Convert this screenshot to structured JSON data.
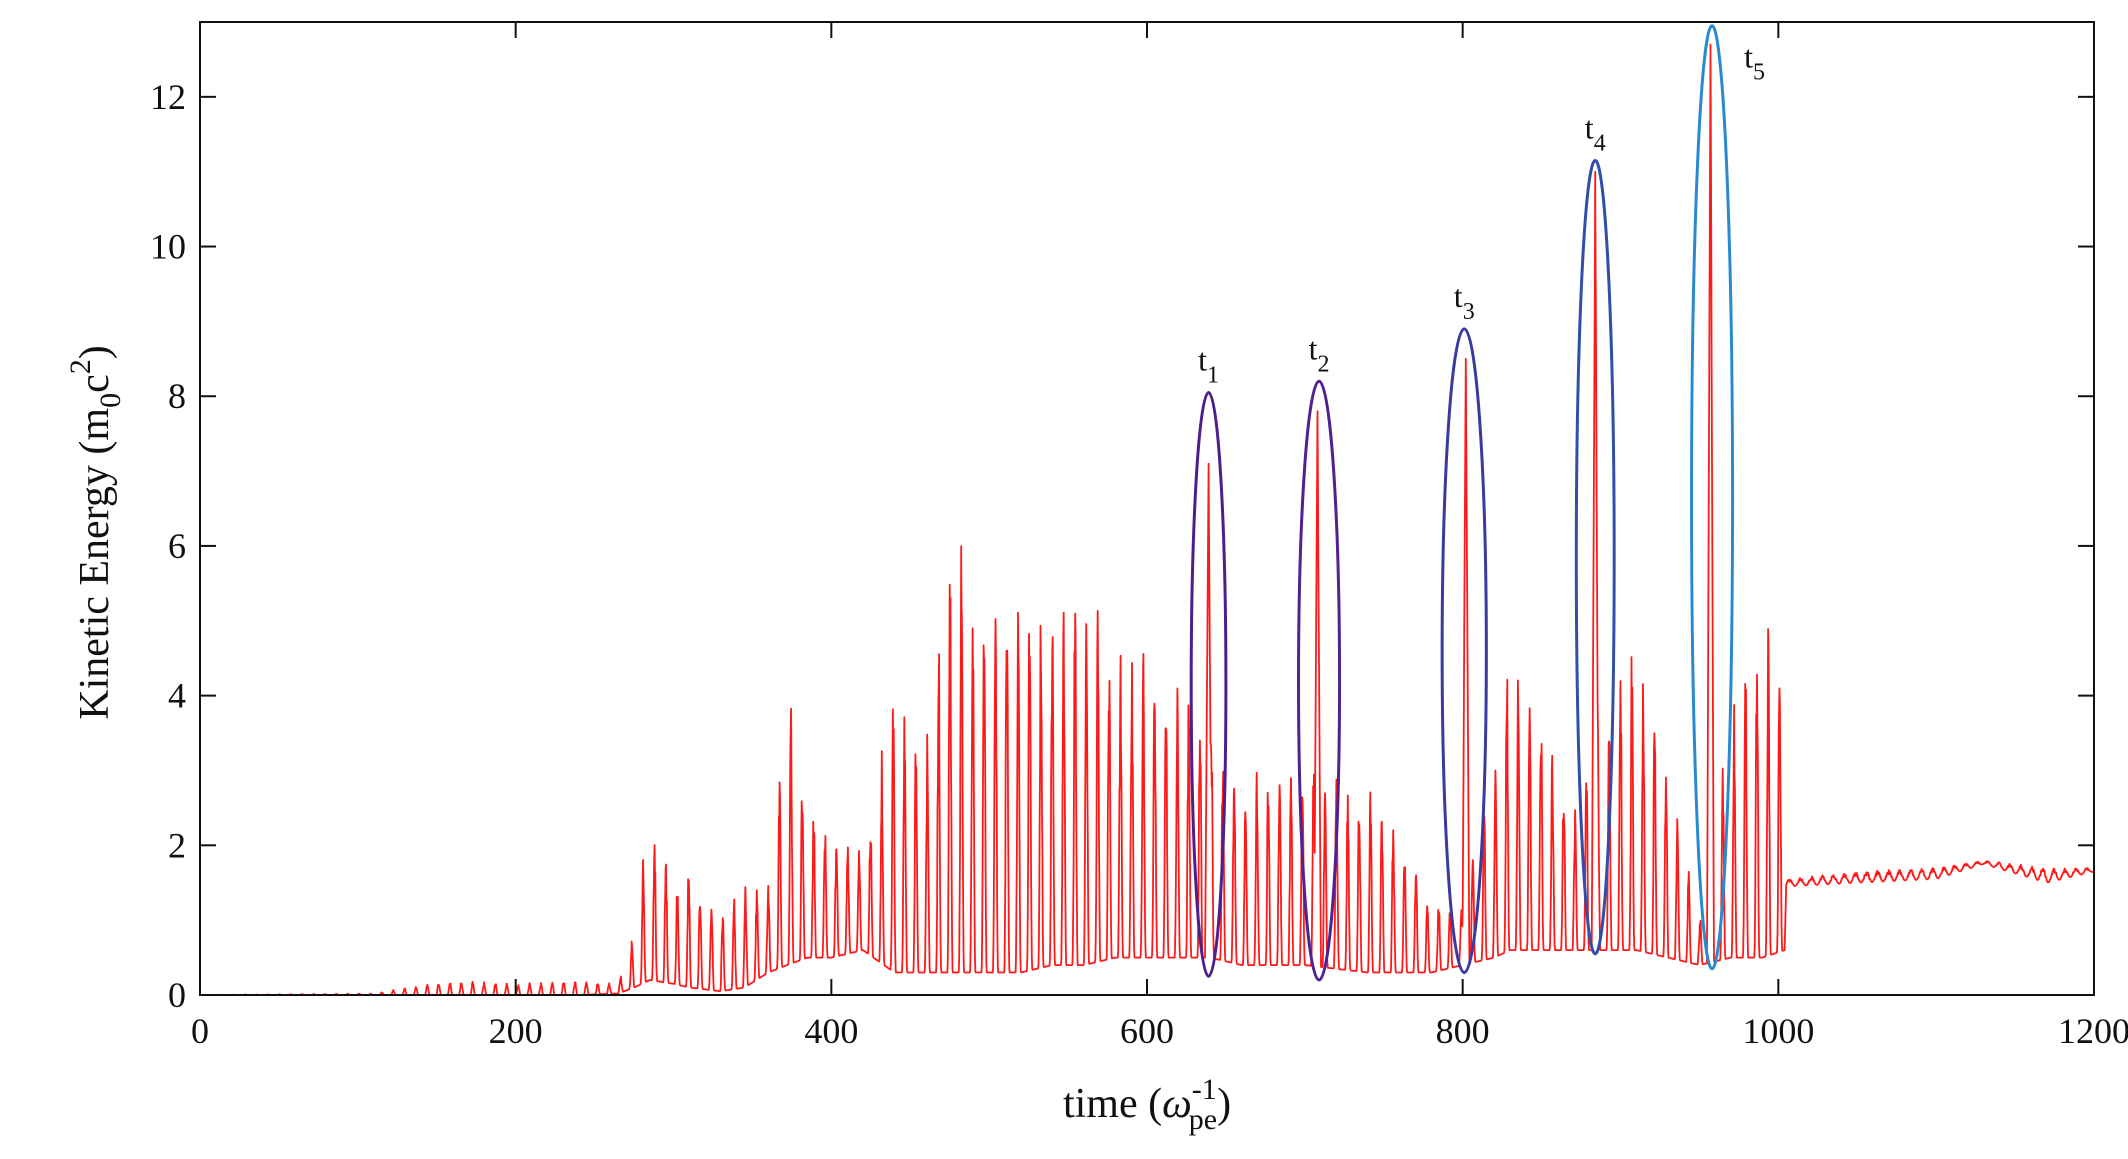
{
  "chart_data": {
    "type": "line",
    "xlabel": {
      "main": "time (",
      "symbol": "ω",
      "sup": "-1",
      "sub": "pe",
      "close": ")"
    },
    "ylabel": {
      "main": "Kinetic Energy  (m",
      "sub": "0",
      "mid": "c",
      "sup": "2",
      "close": ")"
    },
    "xlim": [
      0,
      1200
    ],
    "ylim": [
      0,
      13
    ],
    "xticks": [
      0,
      200,
      400,
      600,
      800,
      1000,
      1200
    ],
    "xtick_labels": [
      "0",
      "200",
      "400",
      "600",
      "800",
      "1000",
      "1200"
    ],
    "yticks": [
      0,
      2,
      4,
      6,
      8,
      10,
      12
    ],
    "ytick_labels": [
      "0",
      "2",
      "4",
      "6",
      "8",
      "10",
      "12"
    ],
    "grid": false,
    "series_color": "#ff1a1a",
    "envelope": [
      [
        0,
        0,
        0
      ],
      [
        110,
        0,
        0.02
      ],
      [
        130,
        0,
        0.1
      ],
      [
        160,
        0,
        0.2
      ],
      [
        200,
        0,
        0.15
      ],
      [
        240,
        0,
        0.2
      ],
      [
        265,
        0.02,
        0.15
      ],
      [
        275,
        0.1,
        0.9
      ],
      [
        285,
        0.2,
        2.5
      ],
      [
        300,
        0.15,
        1.5
      ],
      [
        310,
        0.1,
        1.8
      ],
      [
        330,
        0.05,
        1.2
      ],
      [
        345,
        0.1,
        1.5
      ],
      [
        360,
        0.3,
        1.5
      ],
      [
        372,
        0.4,
        4.2
      ],
      [
        385,
        0.5,
        2.8
      ],
      [
        400,
        0.5,
        2.2
      ],
      [
        420,
        0.6,
        2.0
      ],
      [
        440,
        0.3,
        4.2
      ],
      [
        460,
        0.3,
        3.5
      ],
      [
        478,
        0.3,
        6.5
      ],
      [
        500,
        0.3,
        5.5
      ],
      [
        520,
        0.3,
        5.8
      ],
      [
        540,
        0.4,
        5.3
      ],
      [
        560,
        0.4,
        5.7
      ],
      [
        580,
        0.5,
        4.5
      ],
      [
        600,
        0.5,
        4.8
      ],
      [
        620,
        0.5,
        4.2
      ],
      [
        640,
        0.5,
        3.8
      ],
      [
        660,
        0.4,
        3.0
      ],
      [
        700,
        0.4,
        3.2
      ],
      [
        740,
        0.3,
        2.9
      ],
      [
        760,
        0.3,
        2.3
      ],
      [
        780,
        0.3,
        1.3
      ],
      [
        800,
        0.4,
        1.3
      ],
      [
        820,
        0.5,
        3.2
      ],
      [
        830,
        0.6,
        4.8
      ],
      [
        850,
        0.6,
        4.0
      ],
      [
        870,
        0.6,
        2.5
      ],
      [
        900,
        0.6,
        4.5
      ],
      [
        910,
        0.6,
        4.8
      ],
      [
        930,
        0.5,
        3.0
      ],
      [
        950,
        0.4,
        1.0
      ],
      [
        970,
        0.5,
        4.0
      ],
      [
        990,
        0.5,
        5.1
      ],
      [
        1004,
        0.6,
        4.6
      ],
      [
        1005,
        1.45,
        1.55
      ],
      [
        1050,
        1.5,
        1.65
      ],
      [
        1100,
        1.55,
        1.7
      ],
      [
        1130,
        1.75,
        1.8
      ],
      [
        1170,
        1.5,
        1.7
      ],
      [
        1200,
        1.65,
        1.7
      ]
    ],
    "peaks": [
      {
        "x": 639,
        "y": 7.1
      },
      {
        "x": 708,
        "y": 7.8
      },
      {
        "x": 802,
        "y": 8.5
      },
      {
        "x": 884,
        "y": 11.0
      },
      {
        "x": 957,
        "y": 12.7
      }
    ],
    "annotations": [
      {
        "label": "t",
        "sub": "1",
        "cx": 639,
        "cy": 4.15,
        "rx": 11,
        "ry": 3.9,
        "color": "#4b1f8c"
      },
      {
        "label": "t",
        "sub": "2",
        "cx": 709,
        "cy": 4.2,
        "rx": 13,
        "ry": 4.0,
        "color": "#52208f"
      },
      {
        "label": "t",
        "sub": "3",
        "cx": 801,
        "cy": 4.6,
        "rx": 14,
        "ry": 4.3,
        "color": "#3a3a9e"
      },
      {
        "label": "t",
        "sub": "4",
        "cx": 884,
        "cy": 5.85,
        "rx": 12,
        "ry": 5.3,
        "color": "#2f4fa8"
      },
      {
        "label": "t",
        "sub": "5",
        "cx": 958,
        "cy": 6.65,
        "rx": 13,
        "ry": 6.3,
        "color": "#2a8ad0"
      }
    ]
  }
}
